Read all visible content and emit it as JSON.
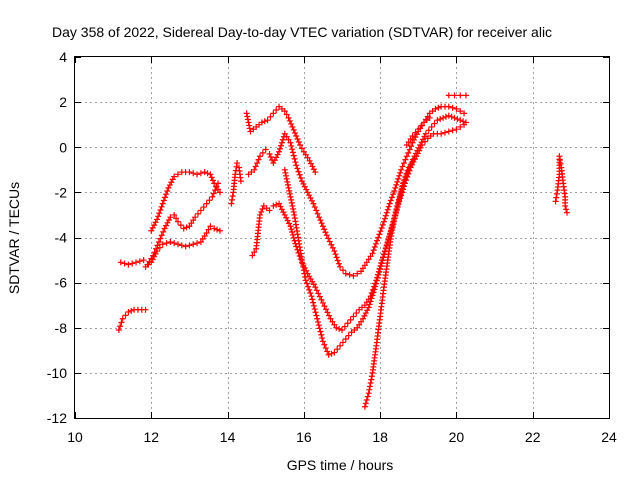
{
  "chart_data": {
    "type": "scatter",
    "title": "Day 358 of 2022, Sidereal Day-to-day VTEC variation (SDTVAR) for receiver alic",
    "xlabel": "GPS time / hours",
    "ylabel": "SDTVAR / TECUs",
    "xlim": [
      10,
      24
    ],
    "ylim": [
      -12,
      4
    ],
    "xticks": [
      10,
      12,
      14,
      16,
      18,
      20,
      22,
      24
    ],
    "yticks": [
      4,
      2,
      0,
      -2,
      -4,
      -6,
      -8,
      -10,
      -12
    ],
    "grid": true,
    "marker": "+",
    "color": "#ff0000",
    "series": [
      {
        "points": [
          [
            11.2,
            -5.1
          ],
          [
            11.4,
            -5.2
          ],
          [
            11.6,
            -5.1
          ],
          [
            11.8,
            -5.0
          ]
        ]
      },
      {
        "points": [
          [
            11.15,
            -8.1
          ],
          [
            11.25,
            -7.6
          ],
          [
            11.4,
            -7.3
          ],
          [
            11.55,
            -7.2
          ],
          [
            11.85,
            -7.2
          ]
        ]
      },
      {
        "points": [
          [
            11.85,
            -5.3
          ],
          [
            12.0,
            -5.1
          ],
          [
            12.15,
            -4.6
          ],
          [
            12.3,
            -4.3
          ],
          [
            12.5,
            -4.2
          ],
          [
            12.7,
            -4.3
          ],
          [
            12.9,
            -4.4
          ],
          [
            13.1,
            -4.3
          ],
          [
            13.3,
            -4.2
          ],
          [
            13.45,
            -3.8
          ],
          [
            13.55,
            -3.5
          ],
          [
            13.65,
            -3.6
          ],
          [
            13.8,
            -3.7
          ]
        ]
      },
      {
        "points": [
          [
            11.9,
            -5.2
          ],
          [
            12.05,
            -4.8
          ],
          [
            12.2,
            -4.2
          ],
          [
            12.35,
            -3.6
          ],
          [
            12.5,
            -3.1
          ],
          [
            12.6,
            -3.0
          ],
          [
            12.7,
            -3.3
          ],
          [
            12.85,
            -3.6
          ],
          [
            13.0,
            -3.5
          ],
          [
            13.15,
            -3.1
          ],
          [
            13.3,
            -2.8
          ],
          [
            13.45,
            -2.5
          ],
          [
            13.6,
            -2.2
          ],
          [
            13.75,
            -1.6
          ]
        ]
      },
      {
        "points": [
          [
            12.0,
            -3.7
          ],
          [
            12.15,
            -3.2
          ],
          [
            12.3,
            -2.5
          ],
          [
            12.45,
            -1.8
          ],
          [
            12.6,
            -1.3
          ],
          [
            12.8,
            -1.1
          ],
          [
            13.0,
            -1.1
          ],
          [
            13.2,
            -1.2
          ],
          [
            13.4,
            -1.1
          ],
          [
            13.55,
            -1.2
          ],
          [
            13.65,
            -1.6
          ],
          [
            13.8,
            -2.0
          ]
        ]
      },
      {
        "points": [
          [
            14.1,
            -2.5
          ],
          [
            14.15,
            -2.0
          ],
          [
            14.2,
            -1.2
          ],
          [
            14.25,
            -0.7
          ],
          [
            14.3,
            -0.9
          ],
          [
            14.35,
            -1.5
          ]
        ]
      },
      {
        "points": [
          [
            14.5,
            1.5
          ],
          [
            14.6,
            0.7
          ],
          [
            14.75,
            0.9
          ],
          [
            14.9,
            1.1
          ],
          [
            15.05,
            1.2
          ],
          [
            15.2,
            1.5
          ],
          [
            15.35,
            1.8
          ],
          [
            15.5,
            1.6
          ],
          [
            15.6,
            1.3
          ],
          [
            15.7,
            0.9
          ],
          [
            15.8,
            0.5
          ],
          [
            15.9,
            0.1
          ],
          [
            16.0,
            -0.2
          ],
          [
            16.15,
            -0.6
          ],
          [
            16.3,
            -1.1
          ]
        ]
      },
      {
        "points": [
          [
            14.55,
            -1.2
          ],
          [
            14.7,
            -1.0
          ],
          [
            14.85,
            -0.4
          ],
          [
            15.0,
            -0.1
          ],
          [
            15.1,
            -0.3
          ],
          [
            15.2,
            -0.7
          ],
          [
            15.35,
            -0.2
          ],
          [
            15.5,
            0.6
          ],
          [
            15.65,
            0.2
          ],
          [
            15.8,
            -0.8
          ],
          [
            15.95,
            -1.5
          ],
          [
            16.1,
            -2.0
          ],
          [
            16.25,
            -2.5
          ],
          [
            16.4,
            -3.1
          ],
          [
            16.6,
            -3.9
          ],
          [
            16.8,
            -4.6
          ],
          [
            16.95,
            -5.3
          ],
          [
            17.1,
            -5.6
          ],
          [
            17.3,
            -5.7
          ],
          [
            17.5,
            -5.5
          ],
          [
            17.65,
            -5.1
          ],
          [
            17.8,
            -4.7
          ],
          [
            17.95,
            -4.0
          ],
          [
            18.1,
            -3.3
          ],
          [
            18.25,
            -2.5
          ],
          [
            18.4,
            -1.8
          ],
          [
            18.55,
            -1.0
          ],
          [
            18.7,
            -0.4
          ],
          [
            18.85,
            0.2
          ],
          [
            19.0,
            0.7
          ],
          [
            19.15,
            1.1
          ],
          [
            19.3,
            1.5
          ],
          [
            19.45,
            1.7
          ],
          [
            19.6,
            1.8
          ],
          [
            19.8,
            1.8
          ],
          [
            20.0,
            1.7
          ],
          [
            20.2,
            1.5
          ]
        ]
      },
      {
        "points": [
          [
            14.65,
            -4.8
          ],
          [
            14.75,
            -4.5
          ],
          [
            14.85,
            -3.0
          ],
          [
            14.95,
            -2.6
          ],
          [
            15.1,
            -2.8
          ],
          [
            15.2,
            -2.6
          ],
          [
            15.35,
            -2.5
          ],
          [
            15.5,
            -3.0
          ],
          [
            15.65,
            -3.5
          ],
          [
            15.8,
            -4.4
          ],
          [
            15.95,
            -5.1
          ],
          [
            16.1,
            -5.6
          ],
          [
            16.3,
            -6.2
          ],
          [
            16.5,
            -6.9
          ],
          [
            16.7,
            -7.6
          ],
          [
            16.85,
            -8.0
          ],
          [
            17.0,
            -8.1
          ],
          [
            17.15,
            -7.8
          ],
          [
            17.3,
            -7.5
          ],
          [
            17.45,
            -7.2
          ],
          [
            17.6,
            -7.0
          ],
          [
            17.75,
            -6.6
          ],
          [
            17.9,
            -5.9
          ],
          [
            18.05,
            -5.0
          ],
          [
            18.2,
            -4.2
          ],
          [
            18.35,
            -3.3
          ],
          [
            18.5,
            -2.4
          ],
          [
            18.65,
            -1.6
          ],
          [
            18.8,
            -0.9
          ],
          [
            18.95,
            -0.4
          ],
          [
            19.1,
            0.1
          ],
          [
            19.25,
            0.4
          ],
          [
            19.4,
            0.6
          ],
          [
            19.6,
            0.6
          ],
          [
            19.8,
            0.7
          ],
          [
            20.0,
            0.8
          ],
          [
            20.2,
            1.0
          ]
        ]
      },
      {
        "points": [
          [
            15.5,
            -1.0
          ],
          [
            15.65,
            -2.2
          ],
          [
            15.75,
            -3.0
          ],
          [
            15.85,
            -4.0
          ],
          [
            15.95,
            -5.0
          ],
          [
            16.05,
            -5.9
          ],
          [
            16.2,
            -6.6
          ],
          [
            16.35,
            -7.6
          ],
          [
            16.5,
            -8.6
          ],
          [
            16.65,
            -9.2
          ],
          [
            16.8,
            -9.1
          ],
          [
            16.95,
            -8.8
          ],
          [
            17.1,
            -8.5
          ],
          [
            17.25,
            -8.2
          ],
          [
            17.4,
            -8.0
          ],
          [
            17.55,
            -7.6
          ],
          [
            17.7,
            -7.1
          ],
          [
            17.85,
            -6.3
          ],
          [
            18.0,
            -5.4
          ],
          [
            18.15,
            -4.5
          ],
          [
            18.3,
            -3.6
          ],
          [
            18.45,
            -2.6
          ],
          [
            18.6,
            -1.7
          ],
          [
            18.75,
            -1.0
          ],
          [
            18.9,
            -0.4
          ],
          [
            19.05,
            0.1
          ],
          [
            19.2,
            0.6
          ],
          [
            19.35,
            0.9
          ],
          [
            19.5,
            1.2
          ],
          [
            19.65,
            1.3
          ],
          [
            19.8,
            1.4
          ],
          [
            19.95,
            1.3
          ],
          [
            20.1,
            1.2
          ],
          [
            20.25,
            1.1
          ]
        ]
      },
      {
        "points": [
          [
            17.6,
            -11.5
          ],
          [
            17.7,
            -10.9
          ],
          [
            17.8,
            -10.0
          ],
          [
            17.9,
            -8.8
          ],
          [
            18.0,
            -7.5
          ],
          [
            18.1,
            -6.2
          ],
          [
            18.2,
            -5.0
          ],
          [
            18.3,
            -3.8
          ],
          [
            18.45,
            -2.6
          ],
          [
            18.6,
            -1.6
          ],
          [
            18.75,
            -0.9
          ],
          [
            18.9,
            -0.5
          ]
        ]
      },
      {
        "points": [
          [
            18.7,
            0.1
          ],
          [
            18.85,
            0.5
          ],
          [
            19.0,
            0.8
          ],
          [
            19.15,
            1.1
          ],
          [
            19.3,
            1.3
          ]
        ]
      },
      {
        "points": [
          [
            19.8,
            2.3
          ],
          [
            19.95,
            2.3
          ],
          [
            20.1,
            2.3
          ],
          [
            20.25,
            2.3
          ]
        ]
      },
      {
        "points": [
          [
            22.6,
            -2.4
          ],
          [
            22.65,
            -1.9
          ],
          [
            22.7,
            -1.2
          ],
          [
            22.7,
            -0.4
          ],
          [
            22.75,
            -0.9
          ],
          [
            22.8,
            -1.6
          ],
          [
            22.85,
            -2.2
          ],
          [
            22.85,
            -2.6
          ],
          [
            22.9,
            -2.9
          ]
        ]
      }
    ]
  }
}
